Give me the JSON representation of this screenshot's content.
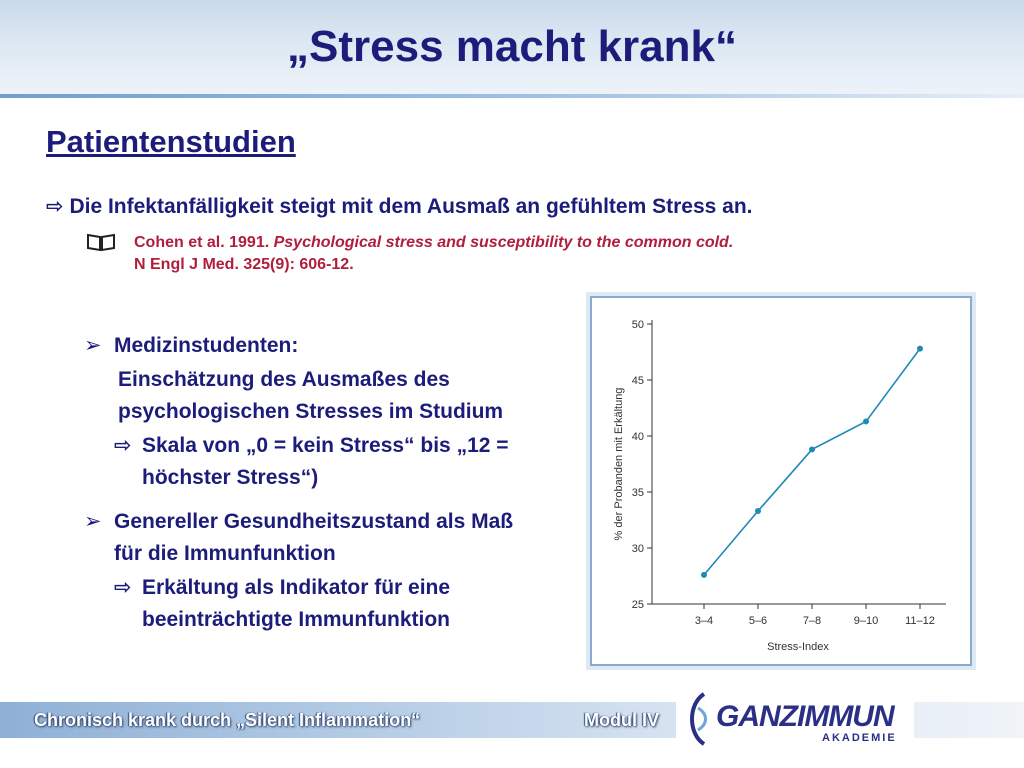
{
  "title": "„Stress macht krank“",
  "subtitle": "Patientenstudien",
  "bullet_main": "Die Infektanfälligkeit steigt mit dem Ausmaß an gefühltem Stress an.",
  "reference": {
    "authors": "Cohen et al. 1991. ",
    "article": "Psychological stress and susceptibility to the common cold.",
    "journal": "N Engl J Med. 325(9): 606-12."
  },
  "list": {
    "item1_title": "Medizinstudenten:",
    "item1_text": "Einschätzung des Ausmaßes des psychologischen Stresses im Studium",
    "item1_sub": "Skala von „0 = kein Stress“ bis „12 = höchster Stress“)",
    "item2_title": "Genereller Gesundheitszustand als Maß für die Immunfunktion",
    "item2_sub": "Erkältung als Indikator für eine beeinträchtigte Immunfunktion"
  },
  "footer": {
    "left": "Chronisch krank durch „Silent Inflammation“",
    "module": "Modul IV",
    "logo_main": "GANZIMMUN",
    "logo_sub": "AKADEMIE"
  },
  "icons": {
    "bullet_arrow": "outline-arrow-right-icon",
    "book": "book-icon",
    "chevron": "chevron-right-icon"
  },
  "colors": {
    "heading": "#1c1c7a",
    "reference": "#b01e3c",
    "chart_line": "#1f8ab5"
  },
  "chart_data": {
    "type": "line",
    "categories": [
      "3–4",
      "5–6",
      "7–8",
      "9–10",
      "11–12"
    ],
    "values": [
      27.6,
      33.3,
      38.8,
      41.3,
      47.8
    ],
    "xlabel": "Stress-Index",
    "ylabel": "% der Probanden mit Erkältung",
    "ylim": [
      25,
      50
    ],
    "yticks": [
      25,
      30,
      35,
      40,
      45,
      50
    ],
    "grid": false
  }
}
